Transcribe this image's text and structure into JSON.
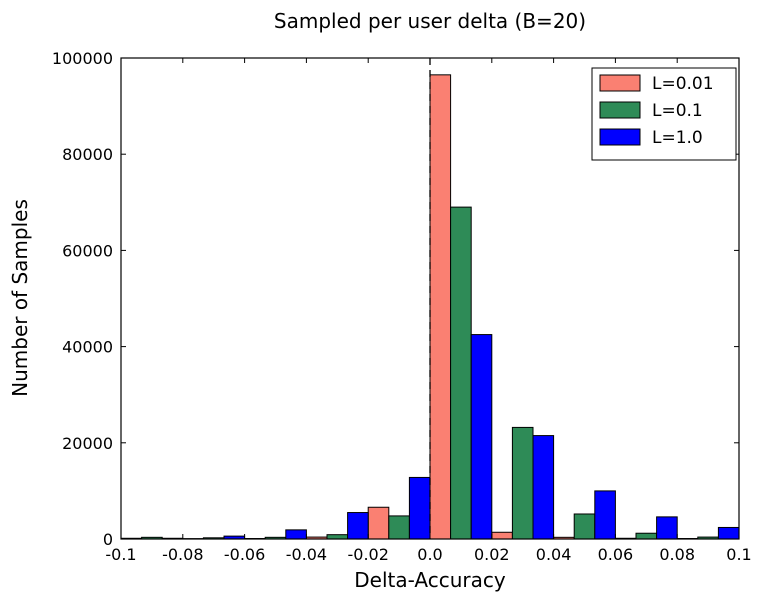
{
  "chart_data": {
    "type": "bar",
    "title": "Sampled per user delta (B=20)",
    "xlabel": "Delta-Accuracy",
    "ylabel": "Number of Samples",
    "xlim": [
      -0.1,
      0.1
    ],
    "ylim": [
      0,
      100000
    ],
    "x_ticks": [
      "-0.1",
      "-0.08",
      "-0.06",
      "-0.04",
      "-0.02",
      "0.0",
      "0.02",
      "0.04",
      "0.06",
      "0.08",
      "0.1"
    ],
    "y_ticks": [
      "0",
      "20000",
      "40000",
      "60000",
      "80000",
      "100000"
    ],
    "bin_edges": [
      -0.1,
      -0.08,
      -0.06,
      -0.04,
      -0.02,
      0.0,
      0.02,
      0.04,
      0.06,
      0.08,
      0.1
    ],
    "reference_line_x": 0.0,
    "grid": false,
    "legend_position": "top-right",
    "series": [
      {
        "name": "L=0.01",
        "color": "#fa8072",
        "values": [
          150,
          80,
          100,
          400,
          6600,
          96500,
          1400,
          350,
          150,
          100
        ]
      },
      {
        "name": "L=0.1",
        "color": "#2e8b57",
        "values": [
          350,
          250,
          350,
          900,
          4800,
          69000,
          23200,
          5200,
          1200,
          400
        ]
      },
      {
        "name": "L=1.0",
        "color": "#0000ff",
        "values": [
          150,
          600,
          1900,
          5500,
          12800,
          42500,
          21500,
          10000,
          4600,
          2400
        ]
      }
    ]
  }
}
